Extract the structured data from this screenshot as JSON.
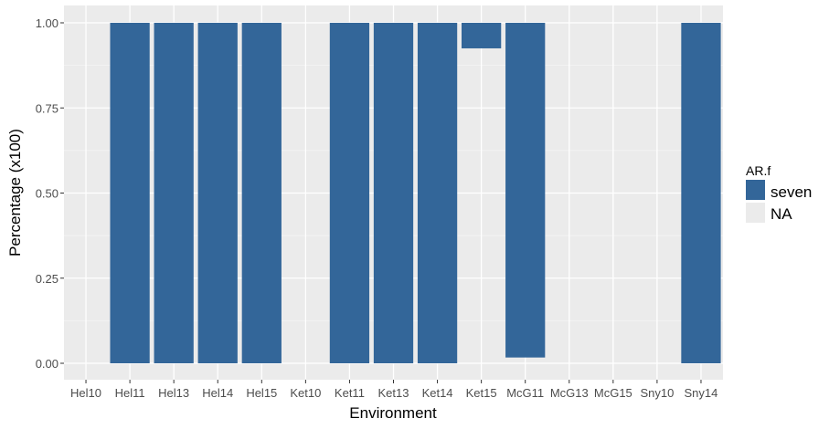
{
  "chart_data": {
    "type": "bar",
    "stacked": true,
    "xlabel": "Environment",
    "ylabel": "Percentage (x100)",
    "ylim": [
      0,
      1
    ],
    "yticks": [
      "0.00",
      "0.25",
      "0.50",
      "0.75",
      "1.00"
    ],
    "categories": [
      "Hel10",
      "Hel11",
      "Hel13",
      "Hel14",
      "Hel15",
      "Ket10",
      "Ket11",
      "Ket13",
      "Ket14",
      "Ket15",
      "McG11",
      "McG13",
      "McG15",
      "Sny10",
      "Sny14"
    ],
    "series": [
      {
        "name": "seven",
        "color": "#336699",
        "ranges": [
          null,
          [
            0,
            1
          ],
          [
            0,
            1
          ],
          [
            0,
            1
          ],
          [
            0,
            1
          ],
          null,
          [
            0,
            1
          ],
          [
            0,
            1
          ],
          [
            0,
            1
          ],
          [
            0.925,
            1
          ],
          [
            0.017,
            1
          ],
          null,
          null,
          null,
          [
            0,
            1
          ]
        ]
      },
      {
        "name": "NA",
        "color": "#ebebeb"
      }
    ],
    "grid": true,
    "legend": {
      "title": "AR.f",
      "position": "right"
    },
    "background": "#ebebeb"
  }
}
